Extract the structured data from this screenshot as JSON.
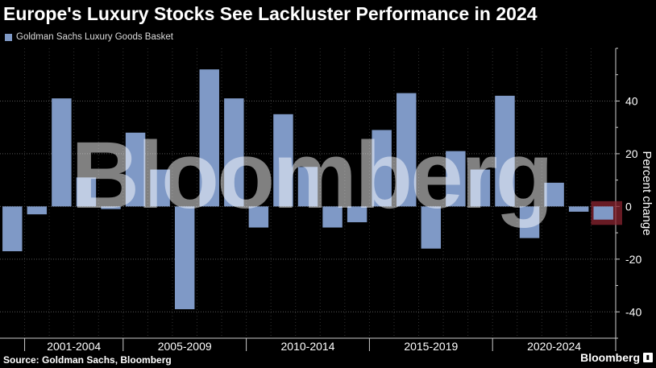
{
  "chart_data": {
    "type": "bar",
    "title": "Europe's Luxury Stocks See Lackluster Performance in 2024",
    "series": [
      {
        "name": "Goldman Sachs Luxury Goods Basket",
        "x": [
          "2000",
          "2001",
          "2002",
          "2003",
          "2004",
          "2005",
          "2006",
          "2007",
          "2008",
          "2009",
          "2010",
          "2011",
          "2012",
          "2013",
          "2014",
          "2015",
          "2016",
          "2017",
          "2018",
          "2019",
          "2020",
          "2021",
          "2022",
          "2023",
          "2024"
        ],
        "values": [
          -17,
          -3,
          41,
          11,
          -1,
          28,
          14,
          -39,
          52,
          41,
          -8,
          35,
          15,
          -8,
          -6,
          29,
          43,
          -16,
          21,
          14,
          42,
          -12,
          9,
          -2,
          -5
        ]
      }
    ],
    "year_groups": [
      {
        "label": "2001-2004",
        "start": "2001",
        "end": "2004"
      },
      {
        "label": "2005-2009",
        "start": "2005",
        "end": "2009"
      },
      {
        "label": "2010-2014",
        "start": "2010",
        "end": "2014"
      },
      {
        "label": "2015-2019",
        "start": "2015",
        "end": "2019"
      },
      {
        "label": "2020-2024",
        "start": "2020",
        "end": "2024"
      }
    ],
    "highlight": {
      "x": "2024",
      "color": "#8b2430"
    },
    "ylabel": "Percent change",
    "ylim": [
      -50,
      60
    ],
    "yticks": [
      -40,
      -20,
      0,
      20,
      40
    ],
    "grid": true,
    "legend_position": "top-left",
    "colors": {
      "bar": "#7f99c6",
      "grid": "#555555",
      "axis": "#cccccc"
    }
  },
  "footer": {
    "source": "Source: Goldman Sachs, Bloomberg",
    "brand": "Bloomberg"
  },
  "watermark": "Bloomberg"
}
